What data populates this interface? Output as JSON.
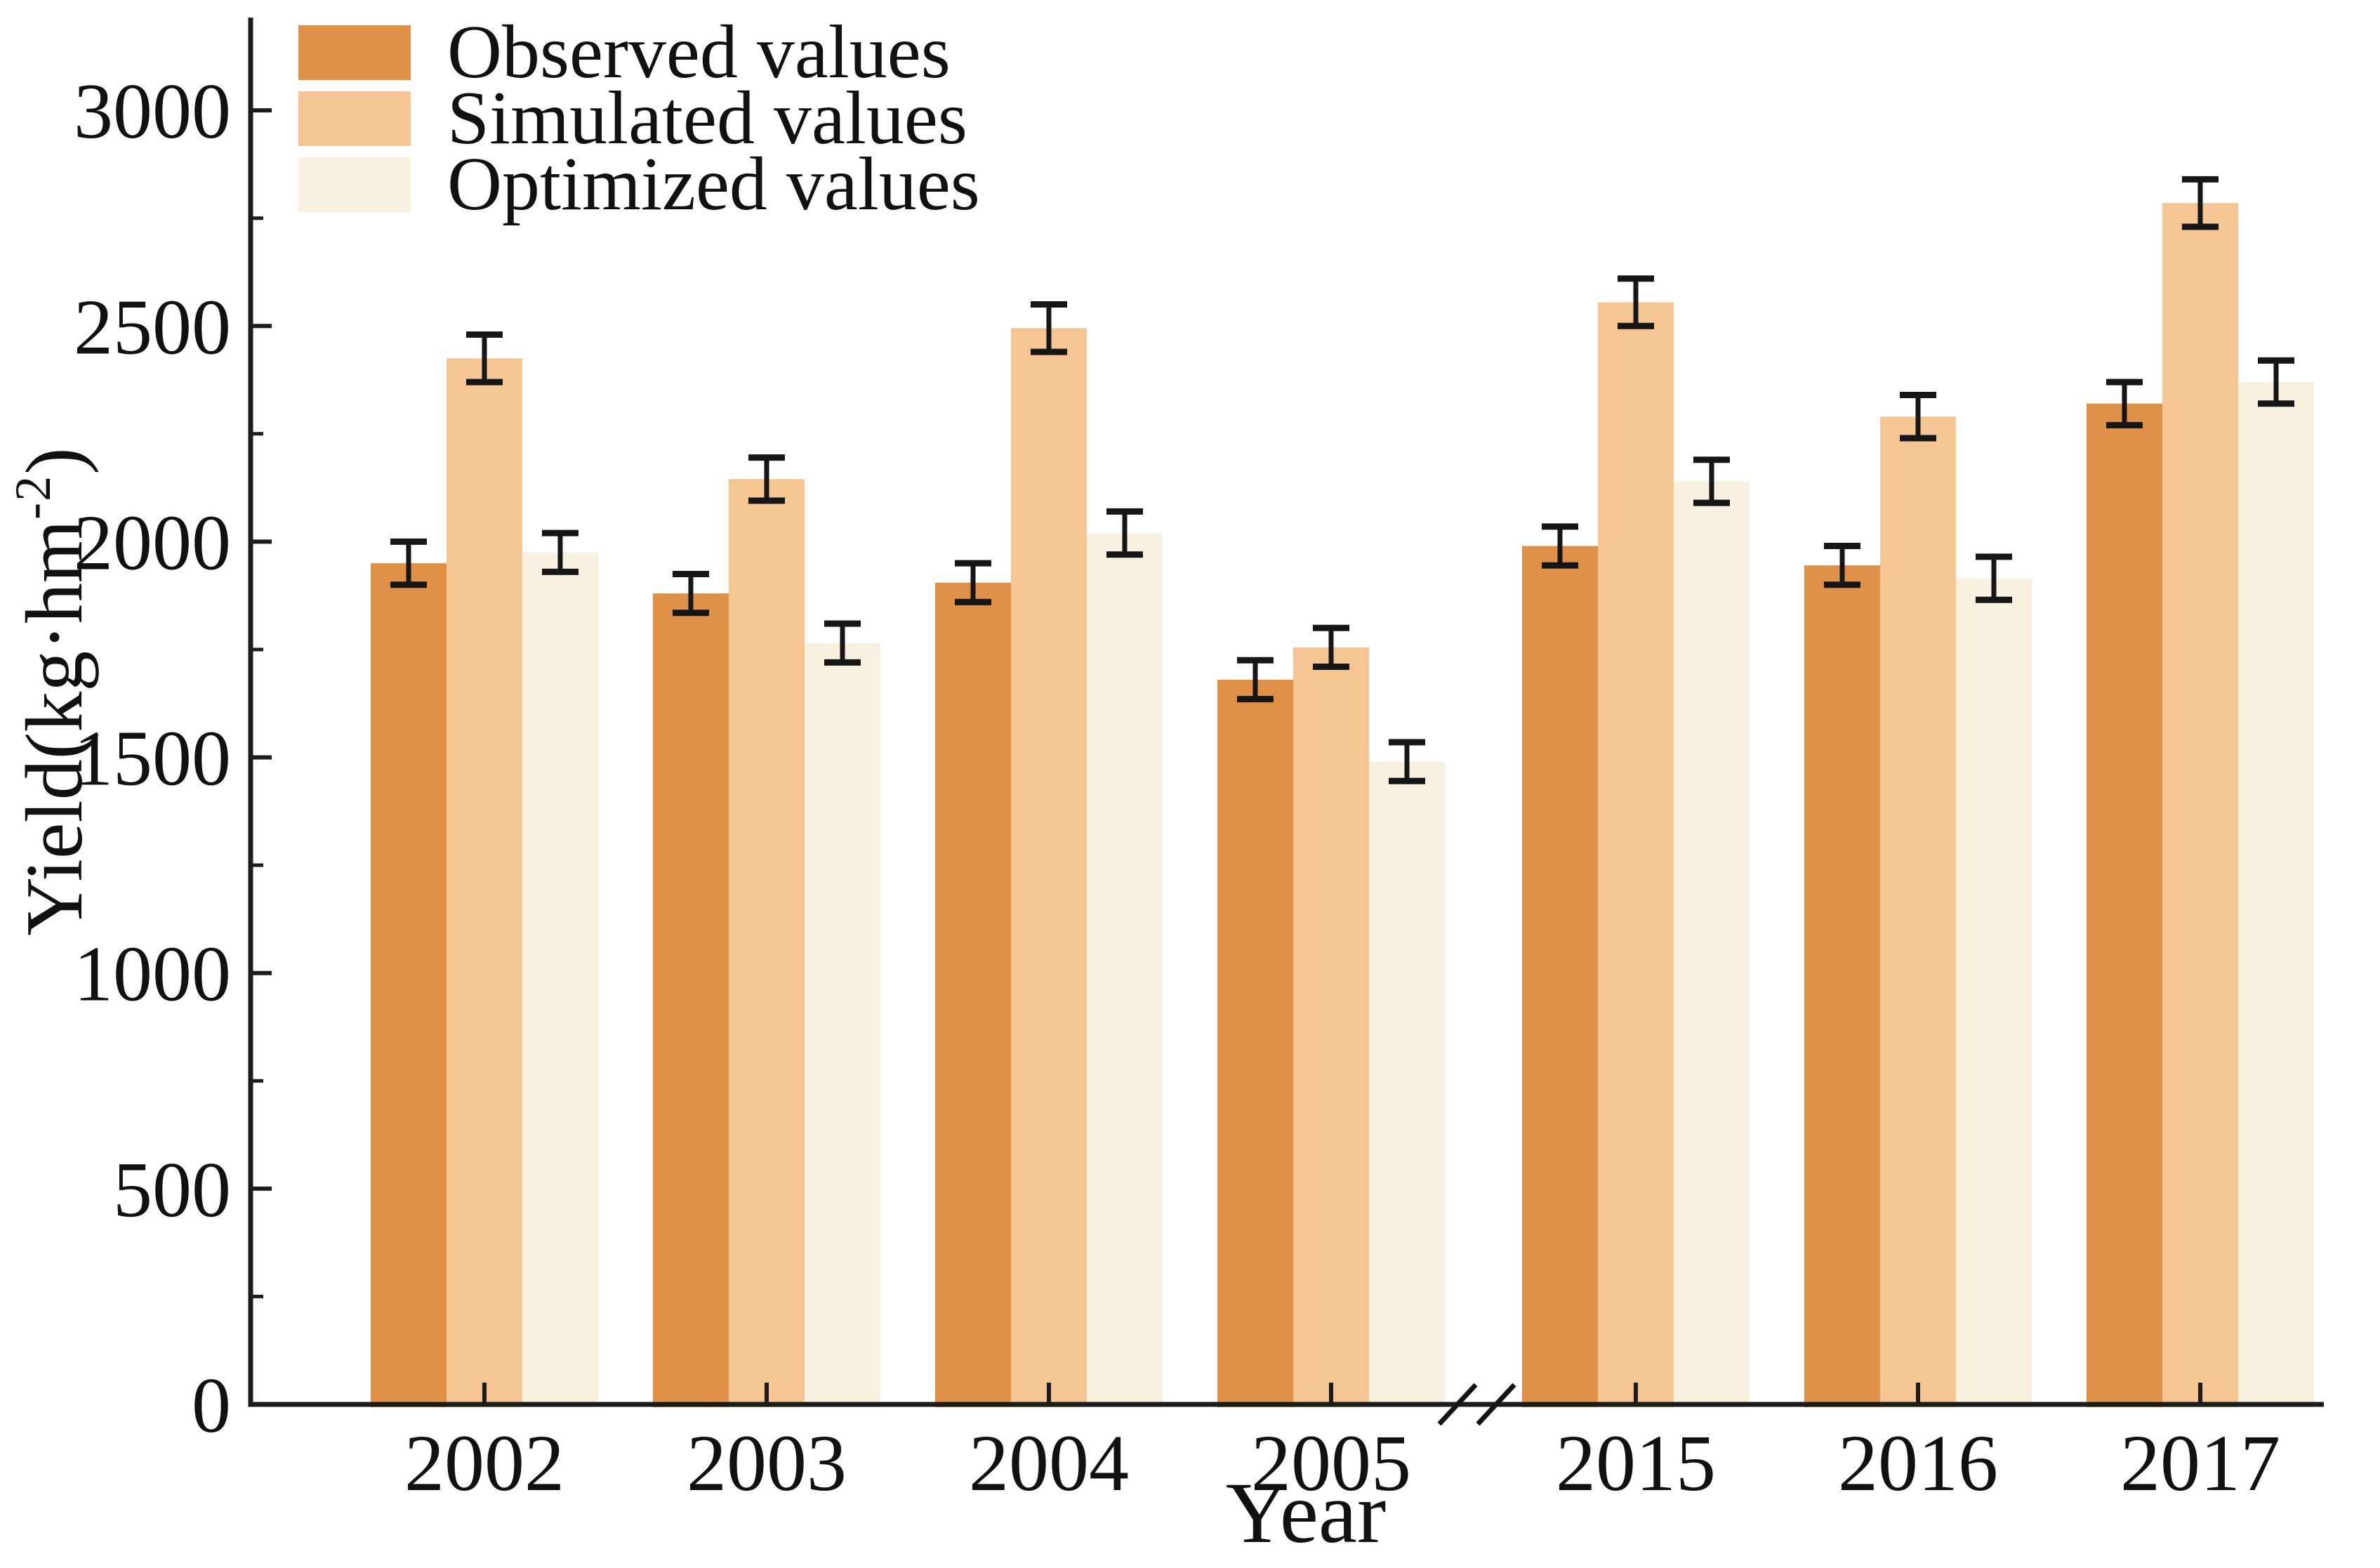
{
  "chart_data": {
    "type": "bar",
    "title": "",
    "xlabel": "Year",
    "ylabel_prefix": "Yield(kg·hm",
    "ylabel_superscript": "-2",
    "ylabel_suffix": ")",
    "categories": [
      "2002",
      "2003",
      "2004",
      "2005",
      "2015",
      "2016",
      "2017"
    ],
    "series": [
      {
        "name": "Observed values",
        "color": "#E09148",
        "values": [
          1950,
          1880,
          1905,
          1680,
          1990,
          1945,
          2320
        ],
        "errors": [
          50,
          45,
          45,
          45,
          45,
          45,
          50
        ]
      },
      {
        "name": "Simulated values",
        "color": "#F5C694",
        "values": [
          2425,
          2145,
          2495,
          1755,
          2555,
          2290,
          2785
        ],
        "errors": [
          55,
          50,
          55,
          45,
          55,
          50,
          55
        ]
      },
      {
        "name": "Optimized values",
        "color": "#F9F1DF",
        "values": [
          1975,
          1765,
          2020,
          1490,
          2140,
          1915,
          2370
        ],
        "errors": [
          45,
          45,
          50,
          45,
          50,
          50,
          50
        ]
      }
    ],
    "ylim": [
      0,
      3200
    ],
    "y_major_ticks": [
      0,
      500,
      1000,
      1500,
      2000,
      2500,
      3000
    ],
    "y_major_tick_labels": [
      "0",
      "500",
      "1000",
      "1500",
      "2000",
      "2500",
      "3000"
    ],
    "y_minor_ticks": [
      250,
      750,
      1250,
      1750,
      2250,
      2750
    ],
    "axis_break": {
      "after_category": "2005",
      "symbol": "//"
    },
    "legend_position": "top-left",
    "grid": false,
    "error_bars": true,
    "axis_color": "#1c1c1c",
    "error_bar_color": "#161616",
    "text_color": "#111111"
  }
}
